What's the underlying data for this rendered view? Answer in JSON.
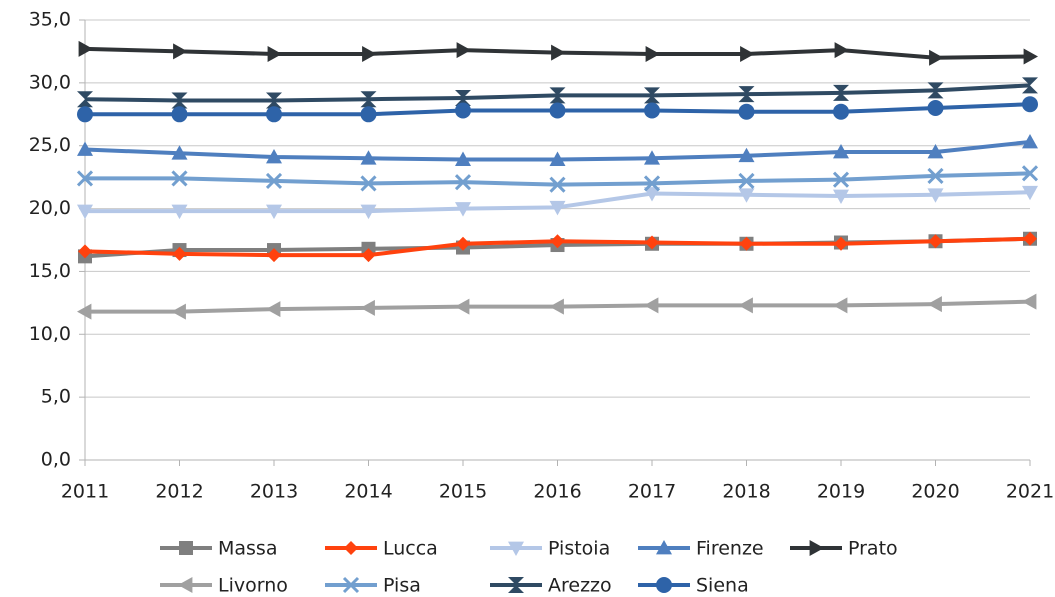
{
  "chart_data": {
    "type": "line",
    "categories": [
      "2011",
      "2012",
      "2013",
      "2014",
      "2015",
      "2016",
      "2017",
      "2018",
      "2019",
      "2020",
      "2021"
    ],
    "series": [
      {
        "name": "Massa",
        "color": "#7f7f7f",
        "marker": "square",
        "values": [
          16.2,
          16.7,
          16.7,
          16.8,
          16.9,
          17.1,
          17.2,
          17.2,
          17.3,
          17.4,
          17.6
        ]
      },
      {
        "name": "Lucca",
        "color": "#ff420e",
        "marker": "diamond",
        "values": [
          16.6,
          16.4,
          16.3,
          16.3,
          17.2,
          17.4,
          17.3,
          17.2,
          17.2,
          17.4,
          17.6
        ]
      },
      {
        "name": "Pistoia",
        "color": "#b4c7e7",
        "marker": "triangle-down",
        "values": [
          19.8,
          19.8,
          19.8,
          19.8,
          20.0,
          20.1,
          21.2,
          21.1,
          21.0,
          21.1,
          21.3
        ]
      },
      {
        "name": "Firenze",
        "color": "#4f7fbf",
        "marker": "triangle-up",
        "values": [
          24.7,
          24.4,
          24.1,
          24.0,
          23.9,
          23.9,
          24.0,
          24.2,
          24.5,
          24.5,
          25.3
        ]
      },
      {
        "name": "Prato",
        "color": "#2f3336",
        "marker": "triangle-right",
        "values": [
          32.7,
          32.5,
          32.3,
          32.3,
          32.6,
          32.4,
          32.3,
          32.3,
          32.6,
          32.0,
          32.1
        ]
      },
      {
        "name": "Livorno",
        "color": "#a0a0a0",
        "marker": "triangle-left",
        "values": [
          11.8,
          11.8,
          12.0,
          12.1,
          12.2,
          12.2,
          12.3,
          12.3,
          12.3,
          12.4,
          12.6
        ]
      },
      {
        "name": "Pisa",
        "color": "#729fcf",
        "marker": "x",
        "values": [
          22.4,
          22.4,
          22.2,
          22.0,
          22.1,
          21.9,
          22.0,
          22.2,
          22.3,
          22.6,
          22.8
        ]
      },
      {
        "name": "Arezzo",
        "color": "#2f4a63",
        "marker": "hourglass",
        "values": [
          28.7,
          28.6,
          28.6,
          28.7,
          28.8,
          29.0,
          29.0,
          29.1,
          29.2,
          29.4,
          29.8
        ]
      },
      {
        "name": "Siena",
        "color": "#2e63a8",
        "marker": "circle",
        "values": [
          27.5,
          27.5,
          27.5,
          27.5,
          27.8,
          27.8,
          27.8,
          27.7,
          27.7,
          28.0,
          28.3
        ]
      }
    ],
    "ylim": [
      0,
      35
    ],
    "yticks": [
      {
        "value": 0,
        "label": "0,0"
      },
      {
        "value": 5,
        "label": "5,0"
      },
      {
        "value": 10,
        "label": "10,0"
      },
      {
        "value": 15,
        "label": "15,0"
      },
      {
        "value": 20,
        "label": "20,0"
      },
      {
        "value": 25,
        "label": "25,0"
      },
      {
        "value": 30,
        "label": "30,0"
      },
      {
        "value": 35,
        "label": "35,0"
      }
    ],
    "grid": true,
    "legend": "bottom"
  }
}
